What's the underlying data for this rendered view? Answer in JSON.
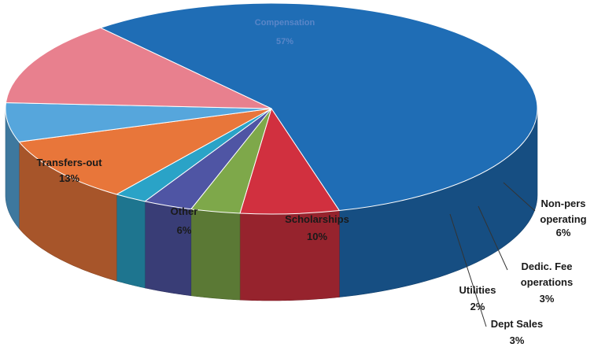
{
  "chart_data": {
    "type": "pie",
    "title": "",
    "categories": [
      "Compensation",
      "Non-pers operating",
      "Dedic. Fee operations",
      "Dept Sales",
      "Utilities",
      "Scholarships",
      "Other",
      "Transfers-out"
    ],
    "values": [
      57,
      6,
      3,
      3,
      2,
      10,
      6,
      13
    ],
    "value_labels": [
      "57%",
      "6%",
      "3%",
      "3%",
      "2%",
      "10%",
      "6%",
      "13%"
    ],
    "colors": [
      "#1f6db5",
      "#d1303f",
      "#7ea84a",
      "#4f55a4",
      "#2aa3c7",
      "#e8763a",
      "#56a6dc",
      "#e8808e"
    ],
    "style": "3d exploded-free pie, tilted"
  }
}
